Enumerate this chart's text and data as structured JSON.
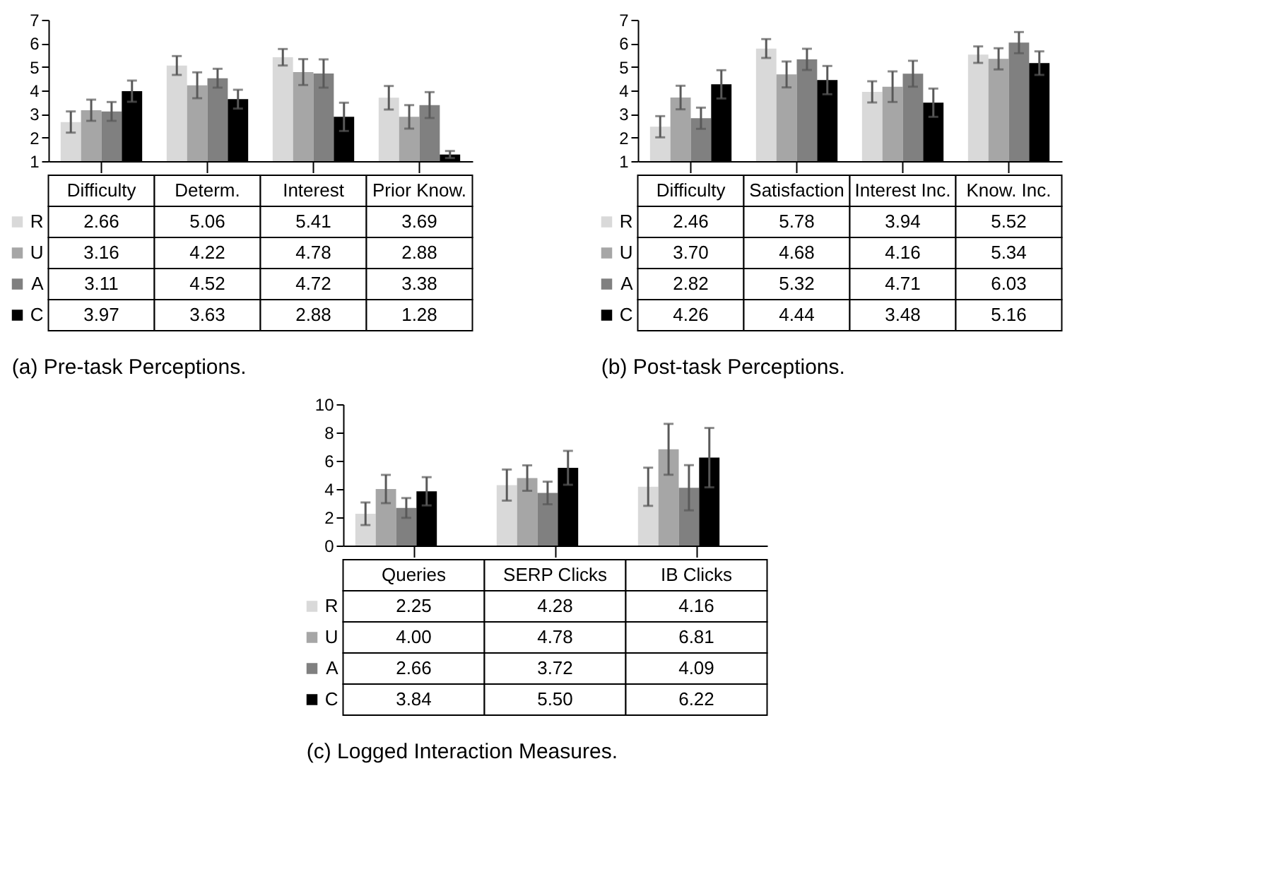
{
  "chart_data": [
    {
      "type": "bar",
      "categories": [
        "Difficulty",
        "Determ.",
        "Interest",
        "Prior Know."
      ],
      "ylim": [
        1,
        7
      ],
      "yticks": [
        1,
        2,
        3,
        4,
        5,
        6,
        7
      ],
      "grid": false,
      "legend": "bottom left",
      "annotations": [
        "(a) Pre-task Perceptions."
      ],
      "series": [
        {
          "name": "R",
          "color": "#d9d9d9",
          "values": [
            2.66,
            5.06,
            5.41,
            3.69
          ],
          "value_labels": [
            "2.66",
            "5.06",
            "5.41",
            "3.69"
          ],
          "errors": [
            0.45,
            0.4,
            0.35,
            0.5
          ]
        },
        {
          "name": "U",
          "color": "#a6a6a6",
          "values": [
            3.16,
            4.22,
            4.78,
            2.88
          ],
          "value_labels": [
            "3.16",
            "4.22",
            "4.78",
            "2.88"
          ],
          "errors": [
            0.45,
            0.55,
            0.55,
            0.5
          ]
        },
        {
          "name": "A",
          "color": "#808080",
          "values": [
            3.11,
            4.52,
            4.72,
            3.38
          ],
          "value_labels": [
            "3.11",
            "4.52",
            "4.72",
            "3.38"
          ],
          "errors": [
            0.4,
            0.4,
            0.6,
            0.55
          ]
        },
        {
          "name": "C",
          "color": "#000000",
          "values": [
            3.97,
            3.63,
            2.88,
            1.28
          ],
          "value_labels": [
            "3.97",
            "3.63",
            "2.88",
            "1.28"
          ],
          "errors": [
            0.45,
            0.4,
            0.6,
            0.15
          ]
        }
      ]
    },
    {
      "type": "bar",
      "categories": [
        "Difficulty",
        "Satisfaction",
        "Interest Inc.",
        "Know. Inc."
      ],
      "ylim": [
        1,
        7
      ],
      "yticks": [
        1,
        2,
        3,
        4,
        5,
        6,
        7
      ],
      "grid": false,
      "legend": "bottom left",
      "annotations": [
        "(b) Post-task Perceptions."
      ],
      "series": [
        {
          "name": "R",
          "color": "#d9d9d9",
          "values": [
            2.46,
            5.78,
            3.94,
            5.52
          ],
          "value_labels": [
            "2.46",
            "5.78",
            "3.94",
            "5.52"
          ],
          "errors": [
            0.45,
            0.4,
            0.45,
            0.35
          ]
        },
        {
          "name": "U",
          "color": "#a6a6a6",
          "values": [
            3.7,
            4.68,
            4.16,
            5.34
          ],
          "value_labels": [
            "3.70",
            "4.68",
            "4.16",
            "5.34"
          ],
          "errors": [
            0.5,
            0.55,
            0.65,
            0.45
          ]
        },
        {
          "name": "A",
          "color": "#808080",
          "values": [
            2.82,
            5.32,
            4.71,
            6.03
          ],
          "value_labels": [
            "2.82",
            "5.32",
            "4.71",
            "6.03"
          ],
          "errors": [
            0.45,
            0.45,
            0.55,
            0.45
          ]
        },
        {
          "name": "C",
          "color": "#000000",
          "values": [
            4.26,
            4.44,
            3.48,
            5.16
          ],
          "value_labels": [
            "4.26",
            "4.44",
            "3.48",
            "5.16"
          ],
          "errors": [
            0.6,
            0.6,
            0.6,
            0.5
          ]
        }
      ]
    },
    {
      "type": "bar",
      "categories": [
        "Queries",
        "SERP Clicks",
        "IB Clicks"
      ],
      "ylim": [
        0,
        10
      ],
      "yticks": [
        0,
        2,
        4,
        6,
        8,
        10
      ],
      "grid": false,
      "legend": "bottom left",
      "annotations": [
        "(c) Logged Interaction Measures."
      ],
      "series": [
        {
          "name": "R",
          "color": "#d9d9d9",
          "values": [
            2.25,
            4.28,
            4.16
          ],
          "value_labels": [
            "2.25",
            "4.28",
            "4.16"
          ],
          "errors": [
            0.8,
            1.1,
            1.35
          ]
        },
        {
          "name": "U",
          "color": "#a6a6a6",
          "values": [
            4.0,
            4.78,
            6.81
          ],
          "value_labels": [
            "4.00",
            "4.78",
            "6.81"
          ],
          "errors": [
            1.0,
            0.9,
            1.8
          ]
        },
        {
          "name": "A",
          "color": "#808080",
          "values": [
            2.66,
            3.72,
            4.09
          ],
          "value_labels": [
            "2.66",
            "3.72",
            "4.09"
          ],
          "errors": [
            0.7,
            0.8,
            1.6
          ]
        },
        {
          "name": "C",
          "color": "#000000",
          "values": [
            3.84,
            5.5,
            6.22
          ],
          "value_labels": [
            "3.84",
            "5.50",
            "6.22"
          ],
          "errors": [
            1.0,
            1.2,
            2.1
          ]
        }
      ]
    }
  ]
}
